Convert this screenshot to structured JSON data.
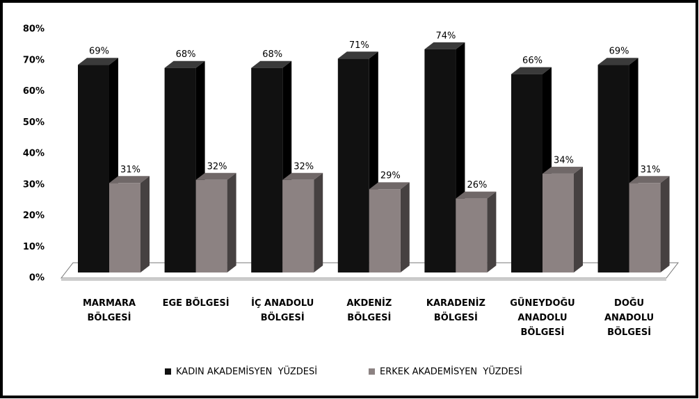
{
  "chart_data": {
    "type": "bar3d",
    "categories": [
      "MARMARA BÖLGESİ",
      "EGE BÖLGESİ",
      "İÇ ANADOLU BÖLGESİ",
      "AKDENİZ BÖLGESİ",
      "KARADENİZ BÖLGESİ",
      "GÜNEYDOĞU ANADOLU BÖLGESİ",
      "DOĞU ANADOLU BÖLGESİ"
    ],
    "series": [
      {
        "name": "KADIN AKADEMİSYEN  YÜZDESİ",
        "color": "#111111",
        "values": [
          69,
          68,
          68,
          71,
          74,
          66,
          69
        ],
        "value_labels": [
          "69%",
          "68%",
          "68%",
          "71%",
          "74%",
          "66%",
          "69%"
        ]
      },
      {
        "name": "ERKEK AKADEMİSYEN  YÜZDESİ",
        "color": "#8c8282",
        "values": [
          31,
          32,
          32,
          29,
          26,
          34,
          31
        ],
        "value_labels": [
          "31%",
          "32%",
          "32%",
          "29%",
          "26%",
          "34%",
          "31%"
        ]
      }
    ],
    "ylim": [
      0,
      80
    ],
    "yticks": [
      {
        "value": 0,
        "label": "0%"
      },
      {
        "value": 10,
        "label": "10%"
      },
      {
        "value": 20,
        "label": "20%"
      },
      {
        "value": 30,
        "label": "30%"
      },
      {
        "value": 40,
        "label": "40%"
      },
      {
        "value": 50,
        "label": "50%"
      },
      {
        "value": 60,
        "label": "60%"
      },
      {
        "value": 70,
        "label": "70%"
      },
      {
        "value": 80,
        "label": "80%"
      }
    ],
    "legend": "bottom"
  }
}
